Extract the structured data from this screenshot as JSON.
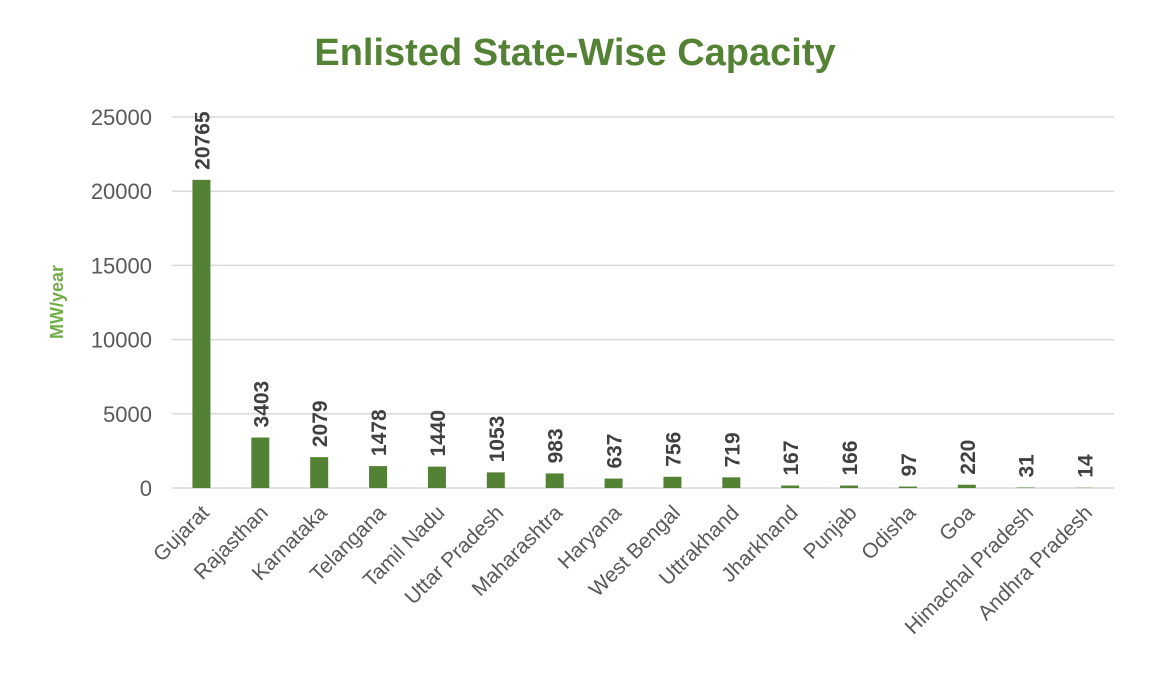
{
  "chart_data": {
    "type": "bar",
    "title": "Enlisted State-Wise Capacity",
    "xlabel": "",
    "ylabel": "MW/year",
    "ylim": [
      0,
      25000
    ],
    "yticks": [
      0,
      5000,
      10000,
      15000,
      20000,
      25000
    ],
    "grid": true,
    "legend": "none",
    "categories": [
      "Gujarat",
      "Rajasthan",
      "Karnataka",
      "Telangana",
      "Tamil Nadu",
      "Uttar Pradesh",
      "Maharashtra",
      "Haryana",
      "West Bengal",
      "Uttrakhand",
      "Jharkhand",
      "Punjab",
      "Odisha",
      "Goa",
      "Himachal Pradesh",
      "Andhra Pradesh"
    ],
    "values": [
      20765,
      3403,
      2079,
      1478,
      1440,
      1053,
      983,
      637,
      756,
      719,
      167,
      166,
      97,
      220,
      31,
      14
    ]
  },
  "colors": {
    "bar": "#548235",
    "title": "#548235",
    "ylabel": "#70AD47",
    "grid": "#d9d9d9",
    "axis_text": "#595959",
    "value_label": "#404040"
  }
}
